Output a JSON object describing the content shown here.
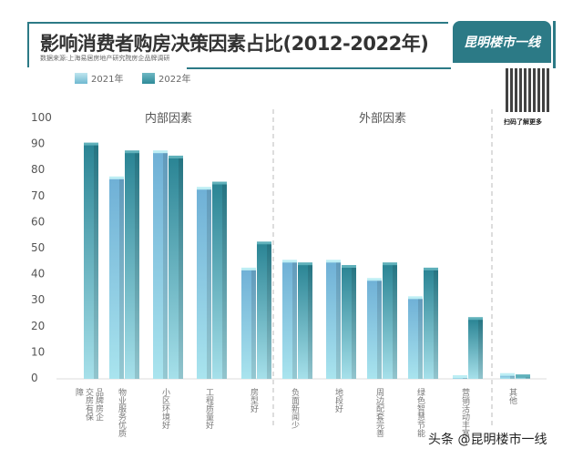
{
  "header": {
    "title": "影响消费者购房决策因素占比(2012-2022年)",
    "source": "数据来源:上海易居房地产研究院房企品牌调研",
    "brand": "昆明楼市一线",
    "qr_caption": "扫码了解更多"
  },
  "watermark": "头条 @昆明楼市一线",
  "colors": {
    "s2021": "#8cc8dc",
    "s2022": "#2e8a98"
  },
  "chart_data": {
    "type": "bar",
    "title": "影响消费者购房决策因素占比(2012-2022年)",
    "categories": [
      "品牌房企交房有保障",
      "物业服务优质",
      "小区环境好",
      "工程质量好",
      "房型好",
      "负面新闻少",
      "地段好",
      "周边配套完善",
      "绿色智慧节能",
      "营销活动丰富",
      "其他"
    ],
    "series": [
      {
        "name": "2021年",
        "values": [
          null,
          77,
          87,
          73,
          42,
          45,
          45,
          38,
          31,
          0.5,
          1.5
        ]
      },
      {
        "name": "2022年",
        "values": [
          90,
          87,
          85,
          75,
          52,
          44,
          43,
          44,
          42,
          23,
          1
        ]
      }
    ],
    "groups": [
      {
        "label": "内部因素"
      },
      {
        "label": "外部因素"
      }
    ],
    "yticks": [
      0,
      10,
      20,
      30,
      40,
      50,
      60,
      70,
      80,
      90,
      100
    ],
    "ylim": [
      0,
      100
    ],
    "legend": "top-left"
  }
}
